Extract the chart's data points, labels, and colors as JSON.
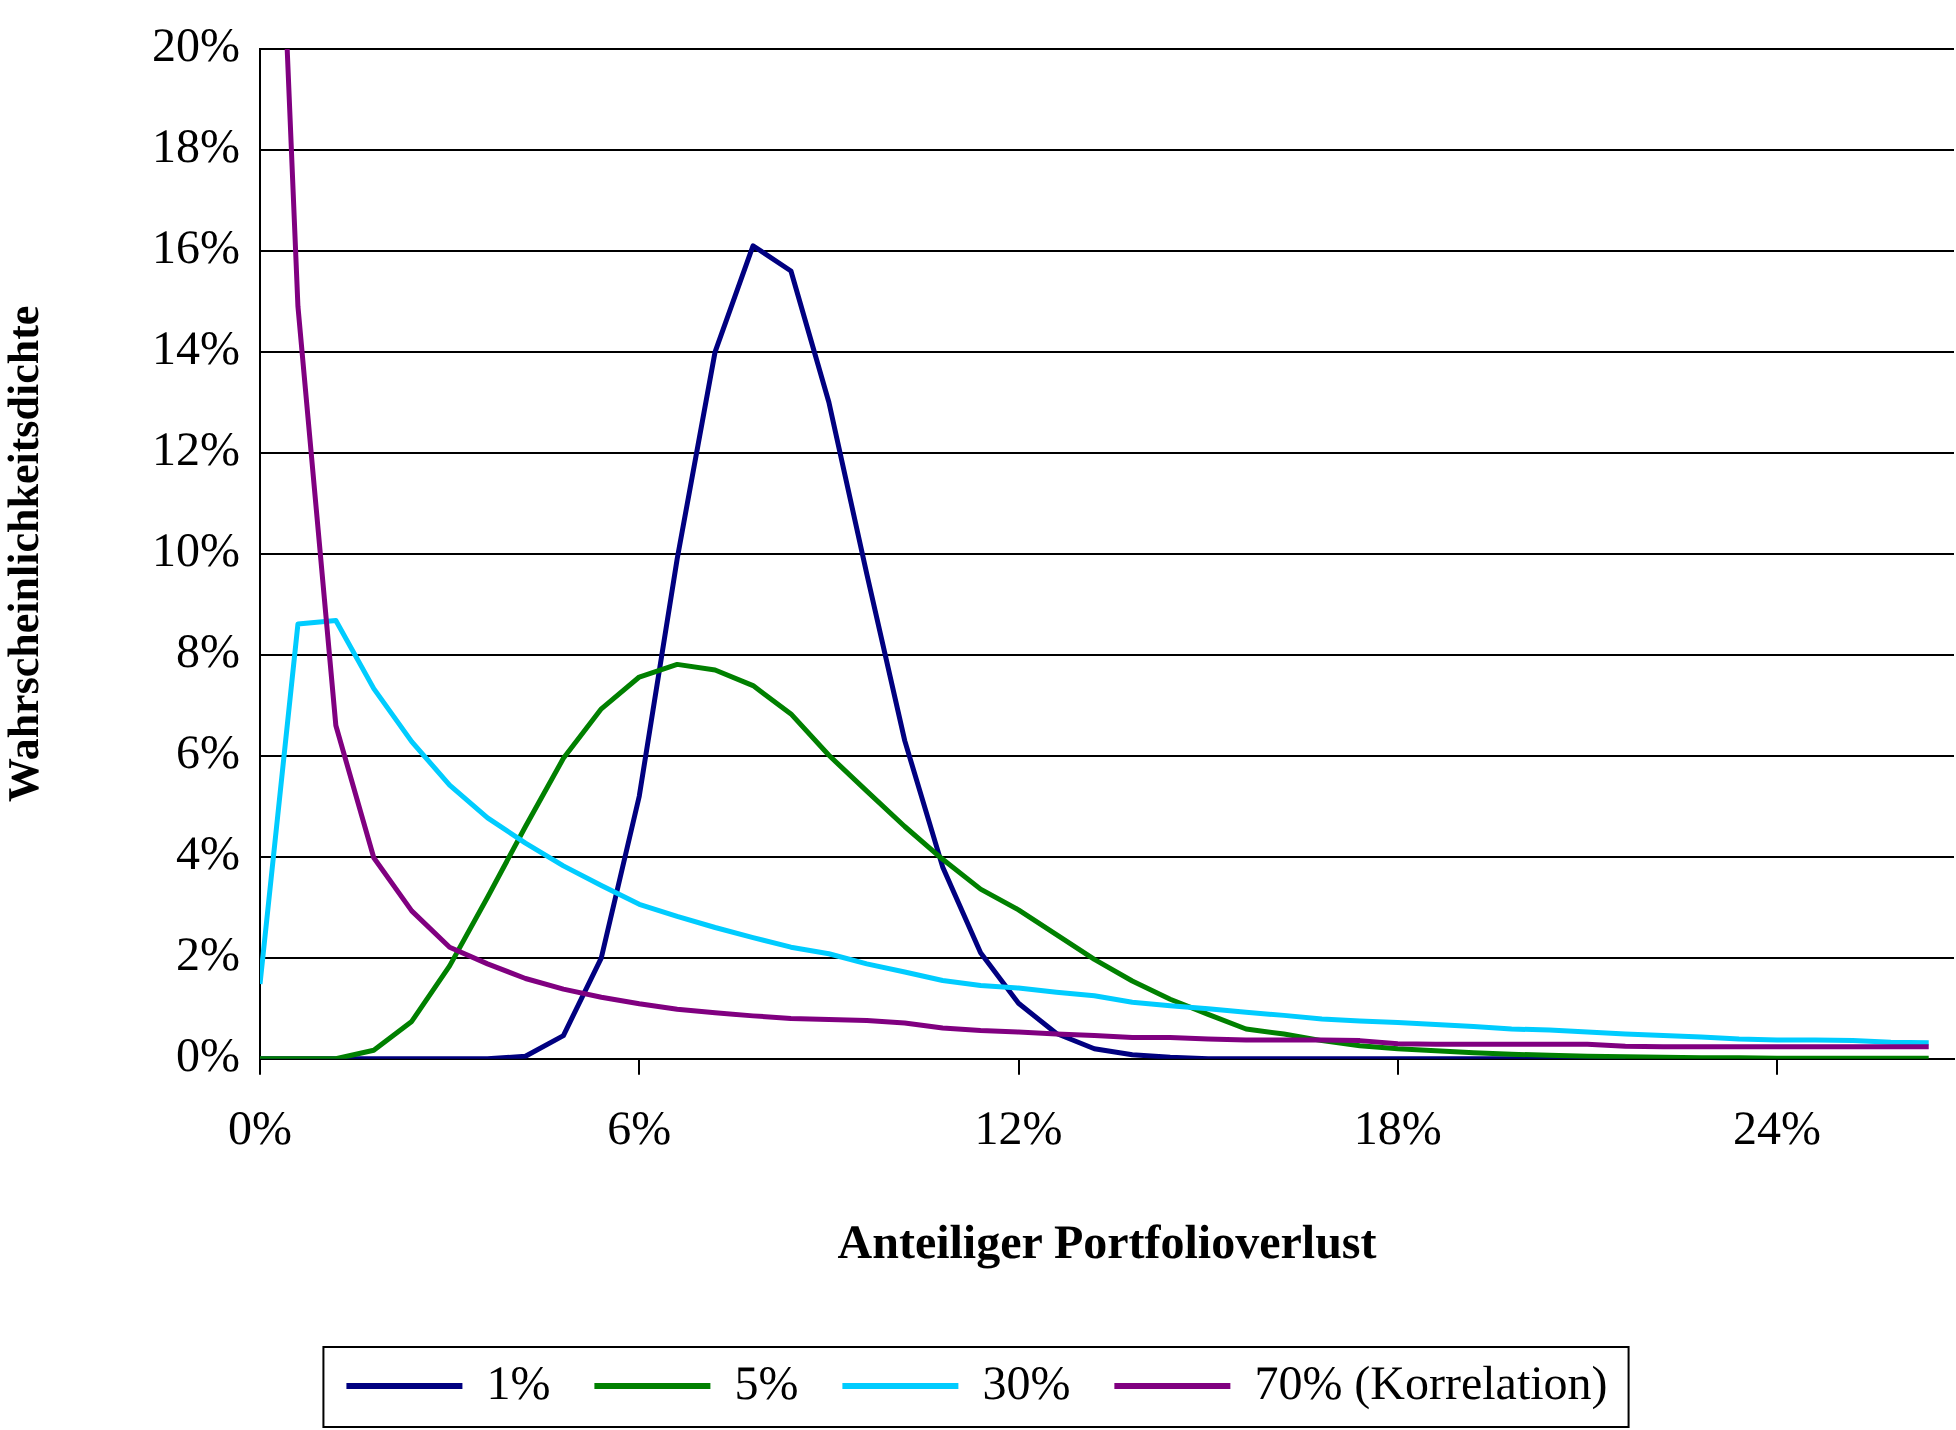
{
  "chart_data": {
    "type": "line",
    "xlabel": "Anteiliger Portfolioverlust",
    "ylabel": "Wahrscheinlichkeitsdichte",
    "x": [
      0,
      0.6,
      1.2,
      1.8,
      2.4,
      3,
      3.6,
      4.2,
      4.8,
      5.4,
      6,
      6.6,
      7.2,
      7.8,
      8.4,
      9,
      9.6,
      10.2,
      10.8,
      11.4,
      12,
      12.6,
      13.2,
      13.8,
      14.4,
      15,
      15.6,
      16.2,
      16.8,
      17.4,
      18,
      18.6,
      19.2,
      19.8,
      20.4,
      21,
      21.6,
      22.2,
      22.8,
      23.4,
      24,
      24.6,
      25.2,
      25.8,
      26.4
    ],
    "series": [
      {
        "name": "1%",
        "color": "#000080",
        "values": [
          0,
          0,
          0,
          0,
          0,
          0,
          0,
          0.05,
          0.46,
          2.0,
          5.2,
          9.9,
          14.0,
          16.1,
          15.6,
          13.0,
          9.6,
          6.3,
          3.8,
          2.1,
          1.1,
          0.5,
          0.2,
          0.08,
          0.03,
          0,
          0,
          0,
          0,
          0,
          0,
          0,
          0,
          0,
          0,
          0,
          0,
          null,
          null,
          null,
          null,
          null,
          null,
          null,
          null
        ]
      },
      {
        "name": "5%",
        "color": "#008000",
        "values": [
          0,
          0,
          0,
          0.17,
          0.74,
          1.84,
          3.2,
          4.6,
          5.95,
          6.93,
          7.56,
          7.81,
          7.7,
          7.39,
          6.83,
          6.01,
          5.3,
          4.6,
          3.95,
          3.36,
          2.95,
          2.46,
          1.97,
          1.54,
          1.18,
          0.88,
          0.59,
          0.49,
          0.36,
          0.26,
          0.2,
          0.16,
          0.12,
          0.09,
          0.07,
          0.05,
          0.04,
          0.03,
          0.02,
          0.02,
          0.01,
          0.01,
          0.01,
          0.01,
          0.01
        ]
      },
      {
        "name": "30%",
        "color": "#00ccff",
        "values": [
          1.48,
          8.61,
          8.68,
          7.33,
          6.28,
          5.42,
          4.77,
          4.27,
          3.82,
          3.43,
          3.06,
          2.82,
          2.6,
          2.4,
          2.21,
          2.08,
          1.88,
          1.72,
          1.55,
          1.45,
          1.4,
          1.32,
          1.25,
          1.12,
          1.05,
          0.99,
          0.92,
          0.86,
          0.79,
          0.75,
          0.72,
          0.68,
          0.64,
          0.59,
          0.57,
          0.53,
          0.49,
          0.46,
          0.43,
          0.39,
          0.37,
          0.37,
          0.36,
          0.33,
          0.32
        ]
      },
      {
        "name": "70% (Korrelation)",
        "color": "#800080",
        "x": [
          0.43,
          0.6,
          1.2,
          1.8,
          2.4,
          3,
          3.6,
          4.2,
          4.8,
          5.4,
          6,
          6.6,
          7.2,
          7.8,
          8.4,
          9,
          9.6,
          10.2,
          10.8,
          11.4,
          12,
          12.6,
          13.2,
          13.8,
          14.4,
          15,
          15.6,
          16.2,
          16.8,
          17.4,
          18,
          18.6,
          19.2,
          19.8,
          20.4,
          21,
          21.6,
          22.2,
          22.8,
          23.4,
          24,
          24.6,
          25.2,
          25.8,
          26.4
        ],
        "values": [
          20,
          14.9,
          6.6,
          3.98,
          2.93,
          2.21,
          1.88,
          1.59,
          1.38,
          1.22,
          1.09,
          0.98,
          0.91,
          0.85,
          0.8,
          0.78,
          0.76,
          0.71,
          0.61,
          0.56,
          0.53,
          0.49,
          0.46,
          0.42,
          0.42,
          0.39,
          0.37,
          0.37,
          0.37,
          0.36,
          0.3,
          0.29,
          0.29,
          0.29,
          0.29,
          0.29,
          0.25,
          0.24,
          0.24,
          0.24,
          0.24,
          0.24,
          0.24,
          0.24,
          0.24
        ]
      }
    ],
    "xlim": [
      0,
      26.8
    ],
    "xticks": [
      {
        "value": 0,
        "label": "0%"
      },
      {
        "value": 6,
        "label": "6%"
      },
      {
        "value": 12,
        "label": "12%"
      },
      {
        "value": 18,
        "label": "18%"
      },
      {
        "value": 24,
        "label": "24%"
      }
    ],
    "ylim": [
      0,
      20
    ],
    "yticks": [
      {
        "value": 0,
        "label": "0%"
      },
      {
        "value": 2,
        "label": "2%"
      },
      {
        "value": 4,
        "label": "4%"
      },
      {
        "value": 6,
        "label": "6%"
      },
      {
        "value": 8,
        "label": "8%"
      },
      {
        "value": 10,
        "label": "10%"
      },
      {
        "value": 12,
        "label": "12%"
      },
      {
        "value": 14,
        "label": "14%"
      },
      {
        "value": 16,
        "label": "16%"
      },
      {
        "value": 18,
        "label": "18%"
      },
      {
        "value": 20,
        "label": "20%"
      }
    ],
    "grid": "y",
    "legend": "bottom",
    "marker": "none",
    "line_style": "solid"
  }
}
